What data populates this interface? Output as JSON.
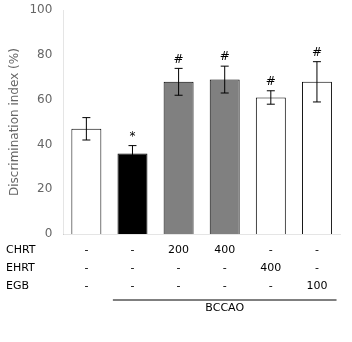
{
  "chart_data": {
    "type": "bar",
    "categories": [
      null,
      null,
      null,
      null,
      null,
      null
    ],
    "values": [
      47,
      36,
      68,
      69,
      61,
      68
    ],
    "errors": [
      5,
      3.5,
      6,
      6,
      3,
      9
    ],
    "colors": [
      "white",
      "black",
      "#808080",
      "#808080",
      "white",
      "white"
    ],
    "sig_labels": [
      null,
      "*",
      "#",
      "#",
      "#",
      "#"
    ],
    "ylabel": "Discrimination index (%)",
    "ylim": [
      0,
      100
    ],
    "yticks": [
      0,
      20,
      40,
      60,
      80,
      100
    ],
    "grid": false,
    "tick_labels": "y",
    "table": {
      "rows": [
        "CHRT",
        "EHRT",
        "EGB"
      ],
      "cells": [
        [
          "-",
          "-",
          "200",
          "400",
          "-",
          "-"
        ],
        [
          "-",
          "-",
          "-",
          "-",
          "400",
          "-"
        ],
        [
          "-",
          "-",
          "-",
          "-",
          "-",
          "100"
        ]
      ]
    },
    "bracket": {
      "label": "BCCAO",
      "start": 1,
      "end": 5
    }
  }
}
